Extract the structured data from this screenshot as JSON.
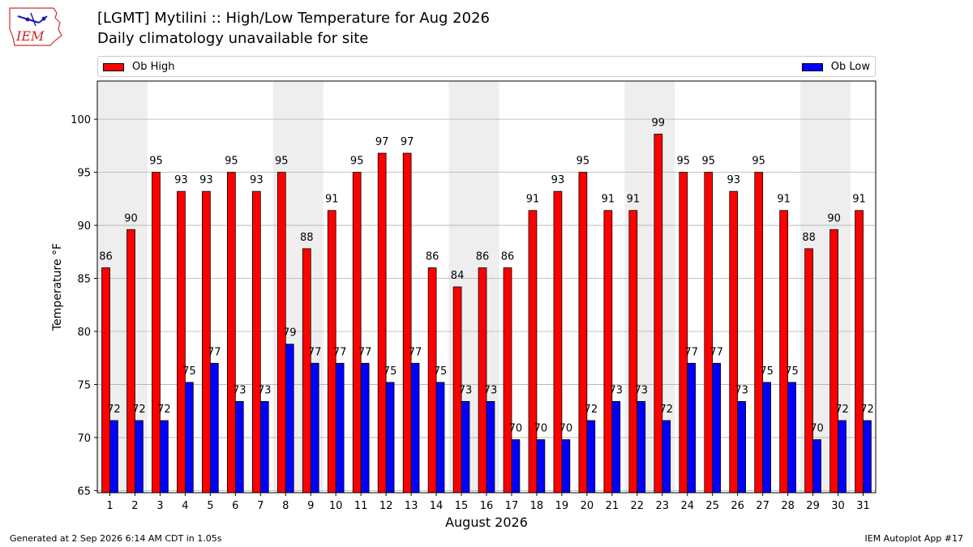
{
  "header": {
    "logo_text": "IEM",
    "title": "[LGMT] Mytilini :: High/Low Temperature for Aug 2026",
    "subtitle": "Daily climatology unavailable for site"
  },
  "legend": {
    "high_label": "Ob High",
    "low_label": "Ob Low"
  },
  "footer": {
    "generated": "Generated at 2 Sep 2026 6:14 AM CDT in 1.05s",
    "app": "IEM Autoplot App #17"
  },
  "chart_data": {
    "type": "bar",
    "title": "[LGMT] Mytilini :: High/Low Temperature for Aug 2026",
    "subtitle": "Daily climatology unavailable for site",
    "xlabel": "August 2026",
    "ylabel": "Temperature °F",
    "categories": [
      "1",
      "2",
      "3",
      "4",
      "5",
      "6",
      "7",
      "8",
      "9",
      "10",
      "11",
      "12",
      "13",
      "14",
      "15",
      "16",
      "17",
      "18",
      "19",
      "20",
      "21",
      "22",
      "23",
      "24",
      "25",
      "26",
      "27",
      "28",
      "29",
      "30",
      "31"
    ],
    "series": [
      {
        "name": "Ob High",
        "color": "#ff0000",
        "values": [
          86,
          89.6,
          95,
          93.2,
          93.2,
          95,
          93.2,
          95,
          87.8,
          91.4,
          95,
          96.8,
          96.8,
          86,
          84.2,
          86,
          86,
          91.4,
          93.2,
          95,
          91.4,
          91.4,
          98.6,
          95,
          95,
          93.2,
          95,
          91.4,
          87.8,
          89.6,
          91.4
        ],
        "labels": [
          "86",
          "90",
          "95",
          "93",
          "93",
          "95",
          "93",
          "95",
          "88",
          "91",
          "95",
          "97",
          "97",
          "86",
          "84",
          "86",
          "86",
          "91",
          "93",
          "95",
          "91",
          "91",
          "99",
          "95",
          "95",
          "93",
          "95",
          "91",
          "88",
          "90",
          "91"
        ]
      },
      {
        "name": "Ob Low",
        "color": "#0000ff",
        "values": [
          71.6,
          71.6,
          71.6,
          75.2,
          77,
          73.4,
          73.4,
          78.8,
          77,
          77,
          77,
          75.2,
          77,
          75.2,
          73.4,
          73.4,
          69.8,
          69.8,
          69.8,
          71.6,
          73.4,
          73.4,
          71.6,
          77,
          77,
          73.4,
          75.2,
          75.2,
          69.8,
          71.6,
          71.6
        ],
        "labels": [
          "72",
          "72",
          "72",
          "75",
          "77",
          "73",
          "73",
          "79",
          "77",
          "77",
          "77",
          "75",
          "77",
          "75",
          "73",
          "73",
          "70",
          "70",
          "70",
          "72",
          "73",
          "73",
          "72",
          "77",
          "77",
          "73",
          "75",
          "75",
          "70",
          "72",
          "72"
        ]
      }
    ],
    "ylim": [
      64.8,
      103.6
    ],
    "yticks": [
      "65",
      "70",
      "75",
      "80",
      "85",
      "90",
      "95",
      "100"
    ],
    "ytick_values": [
      65,
      70,
      75,
      80,
      85,
      90,
      95,
      100
    ],
    "weekend_days": [
      1,
      2,
      8,
      9,
      15,
      16,
      22,
      23,
      29,
      30
    ],
    "grid": "horizontal",
    "legend_placement": "top"
  }
}
